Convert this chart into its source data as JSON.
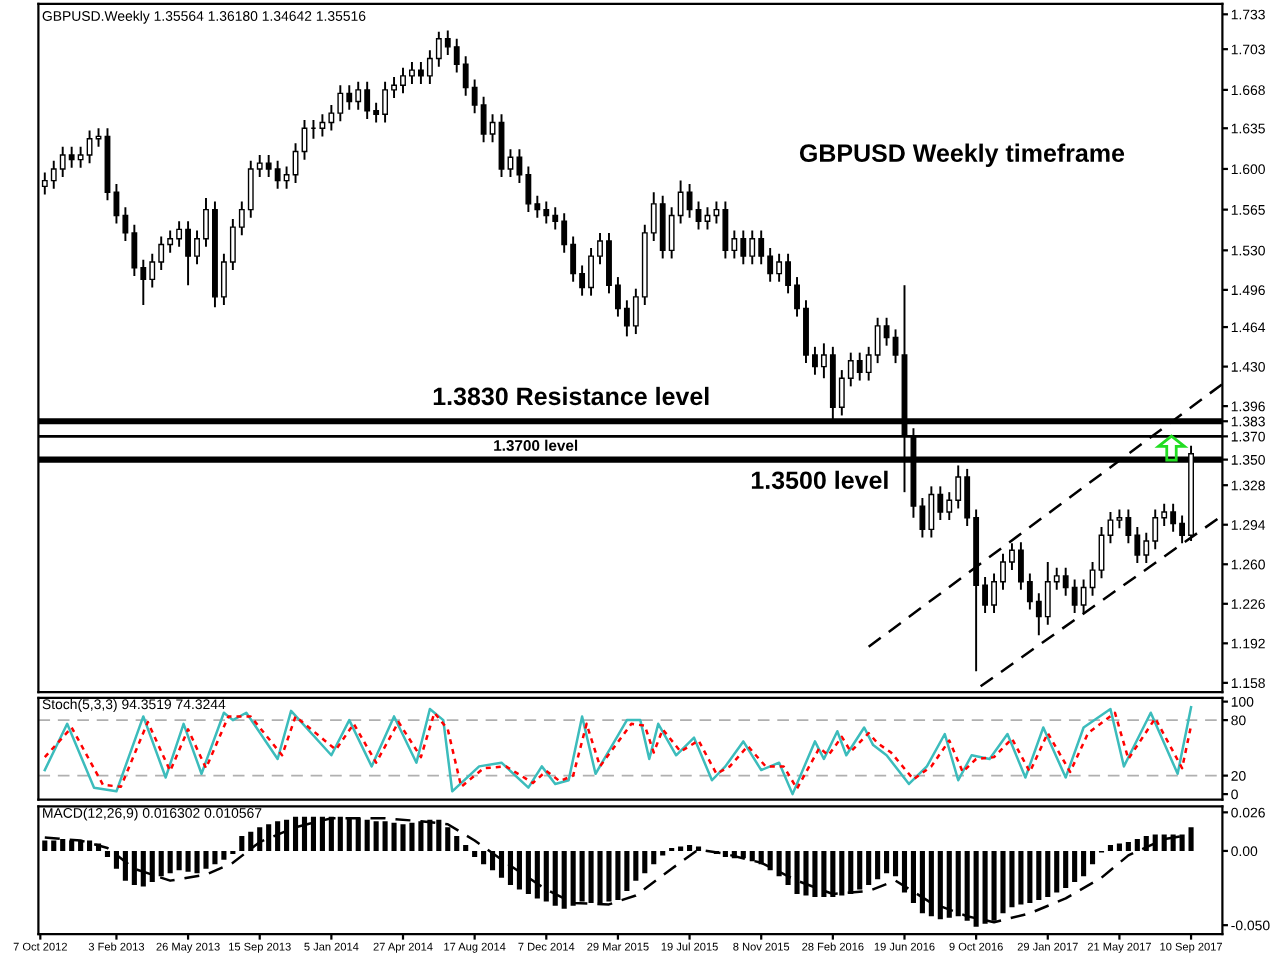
{
  "chart_data": [
    {
      "type": "candlestick",
      "title": "GBPUSD.Weekly 1.35564 1.36180 1.34642 1.35516",
      "annotations": [
        "GBPUSD Weekly timeframe"
      ],
      "color": "#000000",
      "tick_labels": "y",
      "xlim": [
        "2012-10-04",
        "2017-10-29"
      ],
      "ylim": [
        1.15,
        1.742
      ],
      "yticks": [
        {
          "value": 1.733,
          "label": "1.733"
        },
        {
          "value": 1.703,
          "label": "1.703"
        },
        {
          "value": 1.668,
          "label": "1.668"
        },
        {
          "value": 1.635,
          "label": "1.635"
        },
        {
          "value": 1.6,
          "label": "1.600"
        },
        {
          "value": 1.565,
          "label": "1.565"
        },
        {
          "value": 1.53,
          "label": "1.530"
        },
        {
          "value": 1.496,
          "label": "1.496"
        },
        {
          "value": 1.464,
          "label": "1.464"
        },
        {
          "value": 1.43,
          "label": "1.430"
        },
        {
          "value": 1.396,
          "label": "1.396"
        },
        {
          "value": 1.383,
          "label": "1.383"
        },
        {
          "value": 1.37,
          "label": "1.370"
        },
        {
          "value": 1.35,
          "label": "1.350"
        },
        {
          "value": 1.328,
          "label": "1.328"
        },
        {
          "value": 1.294,
          "label": "1.294"
        },
        {
          "value": 1.26,
          "label": "1.260"
        },
        {
          "value": 1.226,
          "label": "1.226"
        },
        {
          "value": 1.192,
          "label": "1.192"
        },
        {
          "value": 1.158,
          "label": "1.158"
        }
      ],
      "x": [
        "2012-10-14",
        "2012-10-28",
        "2012-11-11",
        "2012-11-25",
        "2012-12-09",
        "2012-12-23",
        "2013-01-06",
        "2013-01-20",
        "2013-02-03",
        "2013-02-17",
        "2013-03-03",
        "2013-03-17",
        "2013-03-31",
        "2013-04-14",
        "2013-04-28",
        "2013-05-12",
        "2013-05-26",
        "2013-06-09",
        "2013-06-23",
        "2013-07-07",
        "2013-07-21",
        "2013-08-04",
        "2013-08-18",
        "2013-09-01",
        "2013-09-15",
        "2013-09-29",
        "2013-10-13",
        "2013-10-27",
        "2013-11-10",
        "2013-11-24",
        "2013-12-08",
        "2013-12-22",
        "2014-01-05",
        "2014-01-19",
        "2014-02-02",
        "2014-02-16",
        "2014-03-02",
        "2014-03-16",
        "2014-03-30",
        "2014-04-13",
        "2014-04-27",
        "2014-05-11",
        "2014-05-25",
        "2014-06-08",
        "2014-06-22",
        "2014-07-06",
        "2014-07-20",
        "2014-08-03",
        "2014-08-17",
        "2014-08-31",
        "2014-09-14",
        "2014-09-28",
        "2014-10-12",
        "2014-10-26",
        "2014-11-09",
        "2014-11-23",
        "2014-12-07",
        "2014-12-21",
        "2015-01-04",
        "2015-01-18",
        "2015-02-01",
        "2015-02-15",
        "2015-03-01",
        "2015-03-15",
        "2015-03-29",
        "2015-04-12",
        "2015-04-26",
        "2015-05-10",
        "2015-05-24",
        "2015-06-07",
        "2015-06-21",
        "2015-07-05",
        "2015-07-19",
        "2015-08-02",
        "2015-08-16",
        "2015-08-30",
        "2015-09-13",
        "2015-09-27",
        "2015-10-11",
        "2015-10-25",
        "2015-11-08",
        "2015-11-22",
        "2015-12-06",
        "2015-12-20",
        "2016-01-03",
        "2016-01-17",
        "2016-01-31",
        "2016-02-14",
        "2016-02-28",
        "2016-03-13",
        "2016-03-27",
        "2016-04-10",
        "2016-04-24",
        "2016-05-08",
        "2016-05-22",
        "2016-06-05",
        "2016-06-19",
        "2016-07-03",
        "2016-07-17",
        "2016-07-31",
        "2016-08-14",
        "2016-08-28",
        "2016-09-11",
        "2016-09-25",
        "2016-10-09",
        "2016-10-23",
        "2016-11-06",
        "2016-11-20",
        "2016-12-04",
        "2016-12-18",
        "2017-01-01",
        "2017-01-15",
        "2017-01-29",
        "2017-02-12",
        "2017-02-26",
        "2017-03-12",
        "2017-03-26",
        "2017-04-09",
        "2017-04-23",
        "2017-05-07",
        "2017-05-21",
        "2017-06-04",
        "2017-06-18",
        "2017-07-02",
        "2017-07-16",
        "2017-07-30",
        "2017-08-13",
        "2017-08-27",
        "2017-09-10"
      ],
      "ohlc": [
        [
          1.585,
          1.597,
          1.578,
          1.59
        ],
        [
          1.59,
          1.607,
          1.583,
          1.6
        ],
        [
          1.6,
          1.619,
          1.593,
          1.612
        ],
        [
          1.612,
          1.619,
          1.601,
          1.608
        ],
        [
          1.608,
          1.619,
          1.601,
          1.612
        ],
        [
          1.612,
          1.633,
          1.605,
          1.626
        ],
        [
          1.626,
          1.635,
          1.619,
          1.628
        ],
        [
          1.628,
          1.635,
          1.573,
          1.58
        ],
        [
          1.58,
          1.587,
          1.553,
          1.56
        ],
        [
          1.56,
          1.567,
          1.538,
          1.545
        ],
        [
          1.545,
          1.552,
          1.508,
          1.515
        ],
        [
          1.515,
          1.522,
          1.483,
          1.505
        ],
        [
          1.505,
          1.527,
          1.498,
          1.52
        ],
        [
          1.52,
          1.542,
          1.513,
          1.535
        ],
        [
          1.535,
          1.547,
          1.528,
          1.54
        ],
        [
          1.54,
          1.555,
          1.533,
          1.548
        ],
        [
          1.548,
          1.555,
          1.5,
          1.525
        ],
        [
          1.525,
          1.547,
          1.518,
          1.54
        ],
        [
          1.54,
          1.575,
          1.533,
          1.565
        ],
        [
          1.565,
          1.572,
          1.481,
          1.49
        ],
        [
          1.49,
          1.527,
          1.483,
          1.52
        ],
        [
          1.52,
          1.557,
          1.513,
          1.55
        ],
        [
          1.55,
          1.572,
          1.543,
          1.565
        ],
        [
          1.565,
          1.607,
          1.558,
          1.6
        ],
        [
          1.6,
          1.612,
          1.593,
          1.605
        ],
        [
          1.605,
          1.612,
          1.593,
          1.6
        ],
        [
          1.6,
          1.607,
          1.583,
          1.59
        ],
        [
          1.59,
          1.602,
          1.583,
          1.595
        ],
        [
          1.595,
          1.622,
          1.588,
          1.615
        ],
        [
          1.615,
          1.642,
          1.608,
          1.635
        ],
        [
          1.635,
          1.642,
          1.626,
          1.635
        ],
        [
          1.635,
          1.647,
          1.628,
          1.64
        ],
        [
          1.64,
          1.655,
          1.633,
          1.648
        ],
        [
          1.648,
          1.672,
          1.641,
          1.665
        ],
        [
          1.665,
          1.672,
          1.651,
          1.658
        ],
        [
          1.658,
          1.675,
          1.651,
          1.668
        ],
        [
          1.668,
          1.675,
          1.643,
          1.65
        ],
        [
          1.65,
          1.657,
          1.64,
          1.647
        ],
        [
          1.647,
          1.675,
          1.64,
          1.668
        ],
        [
          1.668,
          1.679,
          1.661,
          1.672
        ],
        [
          1.672,
          1.687,
          1.665,
          1.68
        ],
        [
          1.68,
          1.692,
          1.673,
          1.685
        ],
        [
          1.685,
          1.692,
          1.673,
          1.68
        ],
        [
          1.68,
          1.702,
          1.673,
          1.695
        ],
        [
          1.695,
          1.718,
          1.688,
          1.712
        ],
        [
          1.712,
          1.719,
          1.698,
          1.705
        ],
        [
          1.705,
          1.712,
          1.683,
          1.69
        ],
        [
          1.69,
          1.697,
          1.663,
          1.67
        ],
        [
          1.67,
          1.677,
          1.648,
          1.655
        ],
        [
          1.655,
          1.662,
          1.623,
          1.63
        ],
        [
          1.63,
          1.647,
          1.623,
          1.64
        ],
        [
          1.64,
          1.647,
          1.593,
          1.6
        ],
        [
          1.6,
          1.617,
          1.593,
          1.61
        ],
        [
          1.61,
          1.617,
          1.588,
          1.595
        ],
        [
          1.595,
          1.602,
          1.563,
          1.57
        ],
        [
          1.57,
          1.577,
          1.558,
          1.565
        ],
        [
          1.565,
          1.572,
          1.553,
          1.56
        ],
        [
          1.56,
          1.567,
          1.548,
          1.555
        ],
        [
          1.555,
          1.562,
          1.528,
          1.535
        ],
        [
          1.535,
          1.542,
          1.503,
          1.51
        ],
        [
          1.51,
          1.517,
          1.491,
          1.498
        ],
        [
          1.498,
          1.532,
          1.491,
          1.525
        ],
        [
          1.525,
          1.545,
          1.518,
          1.538
        ],
        [
          1.538,
          1.545,
          1.493,
          1.5
        ],
        [
          1.5,
          1.507,
          1.473,
          1.48
        ],
        [
          1.48,
          1.487,
          1.456,
          1.465
        ],
        [
          1.465,
          1.497,
          1.458,
          1.49
        ],
        [
          1.49,
          1.552,
          1.483,
          1.545
        ],
        [
          1.545,
          1.58,
          1.538,
          1.57
        ],
        [
          1.57,
          1.577,
          1.523,
          1.53
        ],
        [
          1.53,
          1.567,
          1.523,
          1.56
        ],
        [
          1.56,
          1.59,
          1.553,
          1.58
        ],
        [
          1.58,
          1.587,
          1.558,
          1.565
        ],
        [
          1.565,
          1.572,
          1.548,
          1.555
        ],
        [
          1.555,
          1.567,
          1.548,
          1.56
        ],
        [
          1.56,
          1.572,
          1.553,
          1.565
        ],
        [
          1.565,
          1.572,
          1.523,
          1.53
        ],
        [
          1.53,
          1.547,
          1.523,
          1.54
        ],
        [
          1.54,
          1.547,
          1.518,
          1.525
        ],
        [
          1.525,
          1.547,
          1.518,
          1.54
        ],
        [
          1.54,
          1.547,
          1.518,
          1.525
        ],
        [
          1.525,
          1.532,
          1.503,
          1.51
        ],
        [
          1.51,
          1.527,
          1.503,
          1.52
        ],
        [
          1.52,
          1.527,
          1.493,
          1.5
        ],
        [
          1.5,
          1.507,
          1.473,
          1.48
        ],
        [
          1.48,
          1.487,
          1.433,
          1.44
        ],
        [
          1.44,
          1.447,
          1.423,
          1.43
        ],
        [
          1.43,
          1.45,
          1.42,
          1.44
        ],
        [
          1.44,
          1.447,
          1.383,
          1.395
        ],
        [
          1.395,
          1.427,
          1.388,
          1.42
        ],
        [
          1.42,
          1.442,
          1.413,
          1.435
        ],
        [
          1.435,
          1.442,
          1.418,
          1.425
        ],
        [
          1.425,
          1.447,
          1.418,
          1.44
        ],
        [
          1.44,
          1.472,
          1.433,
          1.465
        ],
        [
          1.465,
          1.472,
          1.448,
          1.455
        ],
        [
          1.455,
          1.462,
          1.433,
          1.44
        ],
        [
          1.44,
          1.5,
          1.322,
          1.37
        ],
        [
          1.37,
          1.377,
          1.3,
          1.31
        ],
        [
          1.31,
          1.317,
          1.283,
          1.29
        ],
        [
          1.29,
          1.327,
          1.283,
          1.32
        ],
        [
          1.32,
          1.327,
          1.298,
          1.305
        ],
        [
          1.305,
          1.322,
          1.298,
          1.315
        ],
        [
          1.315,
          1.345,
          1.308,
          1.335
        ],
        [
          1.335,
          1.342,
          1.293,
          1.3
        ],
        [
          1.3,
          1.307,
          1.168,
          1.242
        ],
        [
          1.242,
          1.249,
          1.218,
          1.225
        ],
        [
          1.225,
          1.252,
          1.218,
          1.245
        ],
        [
          1.245,
          1.269,
          1.238,
          1.262
        ],
        [
          1.262,
          1.278,
          1.255,
          1.272
        ],
        [
          1.272,
          1.279,
          1.238,
          1.245
        ],
        [
          1.245,
          1.252,
          1.221,
          1.228
        ],
        [
          1.228,
          1.235,
          1.199,
          1.215
        ],
        [
          1.215,
          1.262,
          1.208,
          1.245
        ],
        [
          1.245,
          1.257,
          1.238,
          1.25
        ],
        [
          1.25,
          1.257,
          1.233,
          1.24
        ],
        [
          1.24,
          1.247,
          1.218,
          1.225
        ],
        [
          1.225,
          1.247,
          1.218,
          1.24
        ],
        [
          1.24,
          1.262,
          1.233,
          1.255
        ],
        [
          1.255,
          1.292,
          1.248,
          1.285
        ],
        [
          1.285,
          1.305,
          1.278,
          1.298
        ],
        [
          1.298,
          1.307,
          1.291,
          1.3
        ],
        [
          1.3,
          1.307,
          1.278,
          1.285
        ],
        [
          1.285,
          1.292,
          1.261,
          1.268
        ],
        [
          1.268,
          1.287,
          1.261,
          1.28
        ],
        [
          1.28,
          1.307,
          1.273,
          1.3
        ],
        [
          1.3,
          1.312,
          1.293,
          1.305
        ],
        [
          1.305,
          1.312,
          1.288,
          1.295
        ],
        [
          1.295,
          1.302,
          1.278,
          1.285
        ],
        [
          1.285,
          1.362,
          1.28,
          1.355
        ]
      ],
      "series": [
        {
          "type": "line",
          "x": [
            "2016-04-24",
            "2017-10-29"
          ],
          "values": [
            1.189,
            1.415
          ],
          "color": "#000000",
          "line_style": "dashed"
        },
        {
          "type": "line",
          "x": [
            "2016-10-16",
            "2017-10-29"
          ],
          "values": [
            1.155,
            1.302
          ],
          "color": "#000000",
          "line_style": "dashed"
        }
      ],
      "ref_lines": [
        {
          "axis": "y",
          "value": 1.383,
          "label": "1.3830 Resistance level",
          "color": "#000000"
        },
        {
          "axis": "y",
          "value": 1.37,
          "label": "1.3700 level",
          "color": "#000000"
        },
        {
          "axis": "y",
          "value": 1.35,
          "label": "1.3500 level",
          "color": "#000000"
        }
      ]
    },
    {
      "type": "line",
      "title": "Stoch(5,3,3) 94.3519 74.3244",
      "tick_labels": "y",
      "xlim": [
        "2012-10-04",
        "2017-10-29"
      ],
      "ylim": [
        -6,
        104
      ],
      "yticks": [
        100,
        80,
        20,
        0
      ],
      "ref_lines": [
        {
          "axis": "y",
          "value": 80,
          "color": "#b0b0b0",
          "line_style": "dashed"
        },
        {
          "axis": "y",
          "value": 20,
          "color": "#b0b0b0",
          "line_style": "dashed"
        }
      ],
      "series": [
        {
          "color": "#3cbcbc",
          "line_style": "solid",
          "x": [
            "2012-10-14",
            "2012-11-18",
            "2012-12-30",
            "2013-02-03",
            "2013-03-17",
            "2013-04-21",
            "2013-05-19",
            "2013-06-16",
            "2013-07-21",
            "2013-08-04",
            "2013-08-25",
            "2013-10-13",
            "2013-11-03",
            "2014-01-05",
            "2014-02-02",
            "2014-03-09",
            "2014-04-13",
            "2014-05-18",
            "2014-06-08",
            "2014-06-29",
            "2014-07-13",
            "2014-08-24",
            "2014-09-28",
            "2014-11-09",
            "2014-11-30",
            "2014-12-21",
            "2015-01-11",
            "2015-02-01",
            "2015-02-22",
            "2015-04-12",
            "2015-05-03",
            "2015-05-17",
            "2015-05-31",
            "2015-06-28",
            "2015-07-26",
            "2015-08-23",
            "2015-09-13",
            "2015-10-11",
            "2015-11-08",
            "2015-12-06",
            "2015-12-27",
            "2016-01-31",
            "2016-02-14",
            "2016-03-06",
            "2016-03-20",
            "2016-04-17",
            "2016-05-01",
            "2016-05-22",
            "2016-06-26",
            "2016-07-24",
            "2016-08-21",
            "2016-09-11",
            "2016-10-02",
            "2016-10-30",
            "2016-11-27",
            "2016-12-25",
            "2017-01-22",
            "2017-02-26",
            "2017-03-26",
            "2017-05-07",
            "2017-05-28",
            "2017-07-09",
            "2017-08-20",
            "2017-09-10"
          ],
          "values": [
            26,
            76,
            7,
            3,
            84,
            18,
            76,
            22,
            88,
            80,
            88,
            38,
            90,
            42,
            80,
            30,
            84,
            34,
            92,
            80,
            3,
            30,
            34,
            7,
            30,
            11,
            15,
            84,
            22,
            80,
            80,
            38,
            76,
            42,
            61,
            15,
            30,
            57,
            26,
            34,
            0,
            57,
            38,
            68,
            42,
            72,
            53,
            42,
            11,
            30,
            65,
            15,
            42,
            38,
            65,
            18,
            72,
            18,
            72,
            92,
            30,
            88,
            22,
            94
          ]
        },
        {
          "color": "#ff0000",
          "line_style": "dotted",
          "x": [
            "2012-10-14",
            "2012-11-25",
            "2013-01-13",
            "2013-02-10",
            "2013-03-24",
            "2013-04-28",
            "2013-05-26",
            "2013-06-23",
            "2013-07-28",
            "2013-09-01",
            "2013-10-20",
            "2013-11-10",
            "2014-01-12",
            "2014-02-09",
            "2014-03-16",
            "2014-04-20",
            "2014-05-25",
            "2014-06-15",
            "2014-07-06",
            "2014-07-27",
            "2014-08-31",
            "2014-10-05",
            "2014-11-16",
            "2014-12-07",
            "2014-12-28",
            "2015-01-18",
            "2015-02-08",
            "2015-03-01",
            "2015-04-19",
            "2015-05-10",
            "2015-05-24",
            "2015-06-07",
            "2015-07-05",
            "2015-08-02",
            "2015-08-30",
            "2015-09-20",
            "2015-10-18",
            "2015-11-15",
            "2015-12-13",
            "2016-01-03",
            "2016-02-07",
            "2016-02-21",
            "2016-03-13",
            "2016-03-27",
            "2016-04-24",
            "2016-05-08",
            "2016-05-29",
            "2016-07-03",
            "2016-07-31",
            "2016-08-28",
            "2016-09-18",
            "2016-10-09",
            "2016-11-06",
            "2016-12-04",
            "2017-01-01",
            "2017-01-29",
            "2017-03-05",
            "2017-04-02",
            "2017-05-14",
            "2017-06-04",
            "2017-07-16",
            "2017-08-27",
            "2017-09-10"
          ],
          "values": [
            40,
            72,
            10,
            8,
            78,
            25,
            70,
            28,
            84,
            84,
            42,
            84,
            48,
            76,
            34,
            78,
            40,
            88,
            70,
            8,
            28,
            30,
            12,
            25,
            14,
            20,
            76,
            30,
            76,
            74,
            45,
            70,
            46,
            58,
            22,
            30,
            52,
            30,
            30,
            6,
            50,
            42,
            62,
            46,
            66,
            55,
            45,
            16,
            30,
            58,
            24,
            38,
            40,
            60,
            24,
            66,
            24,
            66,
            88,
            38,
            82,
            28,
            74
          ]
        }
      ]
    },
    {
      "type": "bar",
      "title": "MACD(12,26,9) 0.016302 0.010567",
      "xlim": [
        "2012-10-04",
        "2017-10-29"
      ],
      "ylim": [
        -0.056,
        0.03
      ],
      "yticks": [
        {
          "value": 0.026,
          "label": "0.026"
        },
        {
          "value": 0,
          "label": "0.00"
        },
        {
          "value": -0.05,
          "label": "-0.050"
        }
      ],
      "xticks": [
        {
          "value": "2012-10-07",
          "label": "7 Oct 2012"
        },
        {
          "value": "2013-02-03",
          "label": "3 Feb 2013"
        },
        {
          "value": "2013-05-26",
          "label": "26 May 2013"
        },
        {
          "value": "2013-09-15",
          "label": "15 Sep 2013"
        },
        {
          "value": "2014-01-05",
          "label": "5 Jan 2014"
        },
        {
          "value": "2014-04-27",
          "label": "27 Apr 2014"
        },
        {
          "value": "2014-08-17",
          "label": "17 Aug 2014"
        },
        {
          "value": "2014-12-07",
          "label": "7 Dec 2014"
        },
        {
          "value": "2015-03-29",
          "label": "29 Mar 2015"
        },
        {
          "value": "2015-07-19",
          "label": "19 Jul 2015"
        },
        {
          "value": "2015-11-08",
          "label": "8 Nov 2015"
        },
        {
          "value": "2016-02-28",
          "label": "28 Feb 2016"
        },
        {
          "value": "2016-06-19",
          "label": "19 Jun 2016"
        },
        {
          "value": "2016-10-09",
          "label": "9 Oct 2016"
        },
        {
          "value": "2017-01-29",
          "label": "29 Jan 2017"
        },
        {
          "value": "2017-05-21",
          "label": "21 May 2017"
        },
        {
          "value": "2017-09-10",
          "label": "10 Sep 2017"
        }
      ],
      "series": [
        {
          "type": "bar",
          "color": "#000000",
          "x": [
            "2012-10-14",
            "2012-10-28",
            "2012-11-11",
            "2012-11-25",
            "2012-12-09",
            "2012-12-23",
            "2013-01-06",
            "2013-01-20",
            "2013-02-03",
            "2013-02-17",
            "2013-03-03",
            "2013-03-17",
            "2013-03-31",
            "2013-04-14",
            "2013-04-28",
            "2013-05-12",
            "2013-05-26",
            "2013-06-09",
            "2013-06-23",
            "2013-07-07",
            "2013-07-21",
            "2013-08-04",
            "2013-08-18",
            "2013-09-01",
            "2013-09-15",
            "2013-09-29",
            "2013-10-13",
            "2013-10-27",
            "2013-11-10",
            "2013-11-24",
            "2013-12-08",
            "2013-12-22",
            "2014-01-05",
            "2014-01-19",
            "2014-02-02",
            "2014-02-16",
            "2014-03-02",
            "2014-03-16",
            "2014-03-30",
            "2014-04-13",
            "2014-04-27",
            "2014-05-11",
            "2014-05-25",
            "2014-06-08",
            "2014-06-22",
            "2014-07-06",
            "2014-07-20",
            "2014-08-03",
            "2014-08-17",
            "2014-08-31",
            "2014-09-14",
            "2014-09-28",
            "2014-10-12",
            "2014-10-26",
            "2014-11-09",
            "2014-11-23",
            "2014-12-07",
            "2014-12-21",
            "2015-01-04",
            "2015-01-18",
            "2015-02-01",
            "2015-02-15",
            "2015-03-01",
            "2015-03-15",
            "2015-03-29",
            "2015-04-12",
            "2015-04-26",
            "2015-05-10",
            "2015-05-24",
            "2015-06-07",
            "2015-06-21",
            "2015-07-05",
            "2015-07-19",
            "2015-08-02",
            "2015-08-16",
            "2015-08-30",
            "2015-09-13",
            "2015-09-27",
            "2015-10-11",
            "2015-10-25",
            "2015-11-08",
            "2015-11-22",
            "2015-12-06",
            "2015-12-20",
            "2016-01-03",
            "2016-01-17",
            "2016-01-31",
            "2016-02-14",
            "2016-02-28",
            "2016-03-13",
            "2016-03-27",
            "2016-04-10",
            "2016-04-24",
            "2016-05-08",
            "2016-05-22",
            "2016-06-05",
            "2016-06-19",
            "2016-07-03",
            "2016-07-17",
            "2016-07-31",
            "2016-08-14",
            "2016-08-28",
            "2016-09-11",
            "2016-09-25",
            "2016-10-09",
            "2016-10-23",
            "2016-11-06",
            "2016-11-20",
            "2016-12-04",
            "2016-12-18",
            "2017-01-01",
            "2017-01-15",
            "2017-01-29",
            "2017-02-12",
            "2017-02-26",
            "2017-03-12",
            "2017-03-26",
            "2017-04-09",
            "2017-04-23",
            "2017-05-07",
            "2017-05-21",
            "2017-06-04",
            "2017-06-18",
            "2017-07-02",
            "2017-07-16",
            "2017-07-30",
            "2017-08-13",
            "2017-08-27",
            "2017-09-10"
          ],
          "values": [
            0.007,
            0.007,
            0.008,
            0.007,
            0.007,
            0.007,
            0.005,
            -0.004,
            -0.012,
            -0.02,
            -0.023,
            -0.024,
            -0.021,
            -0.017,
            -0.015,
            -0.013,
            -0.014,
            -0.015,
            -0.012,
            -0.009,
            -0.006,
            -0.002,
            0.01,
            0.013,
            0.016,
            0.018,
            0.02,
            0.021,
            0.023,
            0.023,
            0.023,
            0.023,
            0.023,
            0.023,
            0.022,
            0.022,
            0.021,
            0.02,
            0.02,
            0.019,
            0.018,
            0.019,
            0.02,
            0.021,
            0.021,
            0.016,
            0.01,
            0.004,
            -0.004,
            -0.009,
            -0.013,
            -0.018,
            -0.023,
            -0.026,
            -0.029,
            -0.032,
            -0.034,
            -0.037,
            -0.039,
            -0.037,
            -0.034,
            -0.035,
            -0.035,
            -0.034,
            -0.033,
            -0.027,
            -0.02,
            -0.015,
            -0.009,
            -0.003,
            0.002,
            0.003,
            0.004,
            0.003,
            0.0,
            -0.002,
            -0.004,
            -0.005,
            -0.005,
            -0.007,
            -0.009,
            -0.013,
            -0.017,
            -0.023,
            -0.029,
            -0.03,
            -0.031,
            -0.031,
            -0.031,
            -0.03,
            -0.029,
            -0.026,
            -0.023,
            -0.019,
            -0.015,
            -0.017,
            -0.028,
            -0.035,
            -0.042,
            -0.044,
            -0.046,
            -0.045,
            -0.044,
            -0.047,
            -0.051,
            -0.049,
            -0.047,
            -0.042,
            -0.038,
            -0.036,
            -0.035,
            -0.033,
            -0.031,
            -0.028,
            -0.025,
            -0.021,
            -0.017,
            -0.009,
            -0.001,
            0.004,
            0.005,
            0.006,
            0.008,
            0.01,
            0.011,
            0.011,
            0.011,
            0.011,
            0.016
          ]
        },
        {
          "type": "line",
          "color": "#000000",
          "line_style": "dashed",
          "x": [
            "2012-10-14",
            "2012-12-09",
            "2013-01-20",
            "2013-03-03",
            "2013-04-28",
            "2013-06-23",
            "2013-08-04",
            "2013-09-15",
            "2013-11-10",
            "2014-01-05",
            "2014-03-30",
            "2014-05-25",
            "2014-07-06",
            "2014-08-17",
            "2014-10-12",
            "2014-12-07",
            "2015-01-18",
            "2015-03-15",
            "2015-04-26",
            "2015-06-21",
            "2015-08-02",
            "2015-09-13",
            "2015-11-08",
            "2016-01-03",
            "2016-02-28",
            "2016-04-24",
            "2016-06-05",
            "2016-07-31",
            "2016-09-25",
            "2016-11-06",
            "2017-01-01",
            "2017-02-26",
            "2017-04-23",
            "2017-06-04",
            "2017-07-30",
            "2017-09-10"
          ],
          "values": [
            0.009,
            0.007,
            0.002,
            -0.012,
            -0.02,
            -0.016,
            -0.008,
            0.006,
            0.016,
            0.022,
            0.022,
            0.02,
            0.018,
            0.007,
            -0.01,
            -0.026,
            -0.035,
            -0.036,
            -0.03,
            -0.012,
            0.001,
            -0.002,
            -0.008,
            -0.02,
            -0.029,
            -0.027,
            -0.02,
            -0.035,
            -0.044,
            -0.048,
            -0.042,
            -0.032,
            -0.018,
            -0.003,
            0.008,
            0.011
          ]
        }
      ]
    }
  ]
}
